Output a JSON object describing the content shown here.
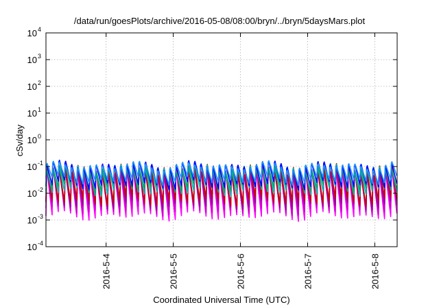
{
  "chart_data": {
    "type": "line",
    "title": "/data/run/goesPlots/archive/2016-05-08/08:00/bryn/../bryn/5daysMars.plot",
    "xlabel": "Coordinated Universal Time (UTC)",
    "ylabel": "cSv/day",
    "y_scale": "log",
    "ylim": [
      0.0001,
      10000
    ],
    "y_ticks": [
      {
        "value": 0.0001,
        "mantissa": "10",
        "exp": "-4"
      },
      {
        "value": 0.001,
        "mantissa": "10",
        "exp": "-3"
      },
      {
        "value": 0.01,
        "mantissa": "10",
        "exp": "-2"
      },
      {
        "value": 0.1,
        "mantissa": "10",
        "exp": "-1"
      },
      {
        "value": 1,
        "mantissa": "10",
        "exp": "0"
      },
      {
        "value": 10,
        "mantissa": "10",
        "exp": "1"
      },
      {
        "value": 100,
        "mantissa": "10",
        "exp": "2"
      },
      {
        "value": 1000,
        "mantissa": "10",
        "exp": "3"
      },
      {
        "value": 10000,
        "mantissa": "10",
        "exp": "4"
      }
    ],
    "xlim": [
      "2016-05-03 02:30",
      "2016-05-08 08:00"
    ],
    "x_ticks": [
      {
        "value": "2016-05-04 00:00",
        "label": "2016-5-4"
      },
      {
        "value": "2016-05-05 00:00",
        "label": "2016-5-5"
      },
      {
        "value": "2016-05-06 00:00",
        "label": "2016-5-6"
      },
      {
        "value": "2016-05-07 00:00",
        "label": "2016-5-7"
      },
      {
        "value": "2016-05-08 00:00",
        "label": "2016-5-8"
      }
    ],
    "grid": true,
    "orbital_period_hours": 2.2,
    "series": [
      {
        "color": "#ff00ff",
        "peak": 0.09,
        "trough": 0.0014
      },
      {
        "color": "#cc00cc",
        "peak": 0.085,
        "trough": 0.0022
      },
      {
        "color": "#990099",
        "peak": 0.08,
        "trough": 0.0035
      },
      {
        "color": "#cc0000",
        "peak": 0.11,
        "trough": 0.005
      },
      {
        "color": "#00bbbb",
        "peak": 0.1,
        "trough": 0.012
      },
      {
        "color": "#00aa66",
        "peak": 0.095,
        "trough": 0.016
      },
      {
        "color": "#0000ff",
        "peak": 0.13,
        "trough": 0.02
      },
      {
        "color": "#1e90ff",
        "peak": 0.12,
        "trough": 0.03
      }
    ]
  }
}
